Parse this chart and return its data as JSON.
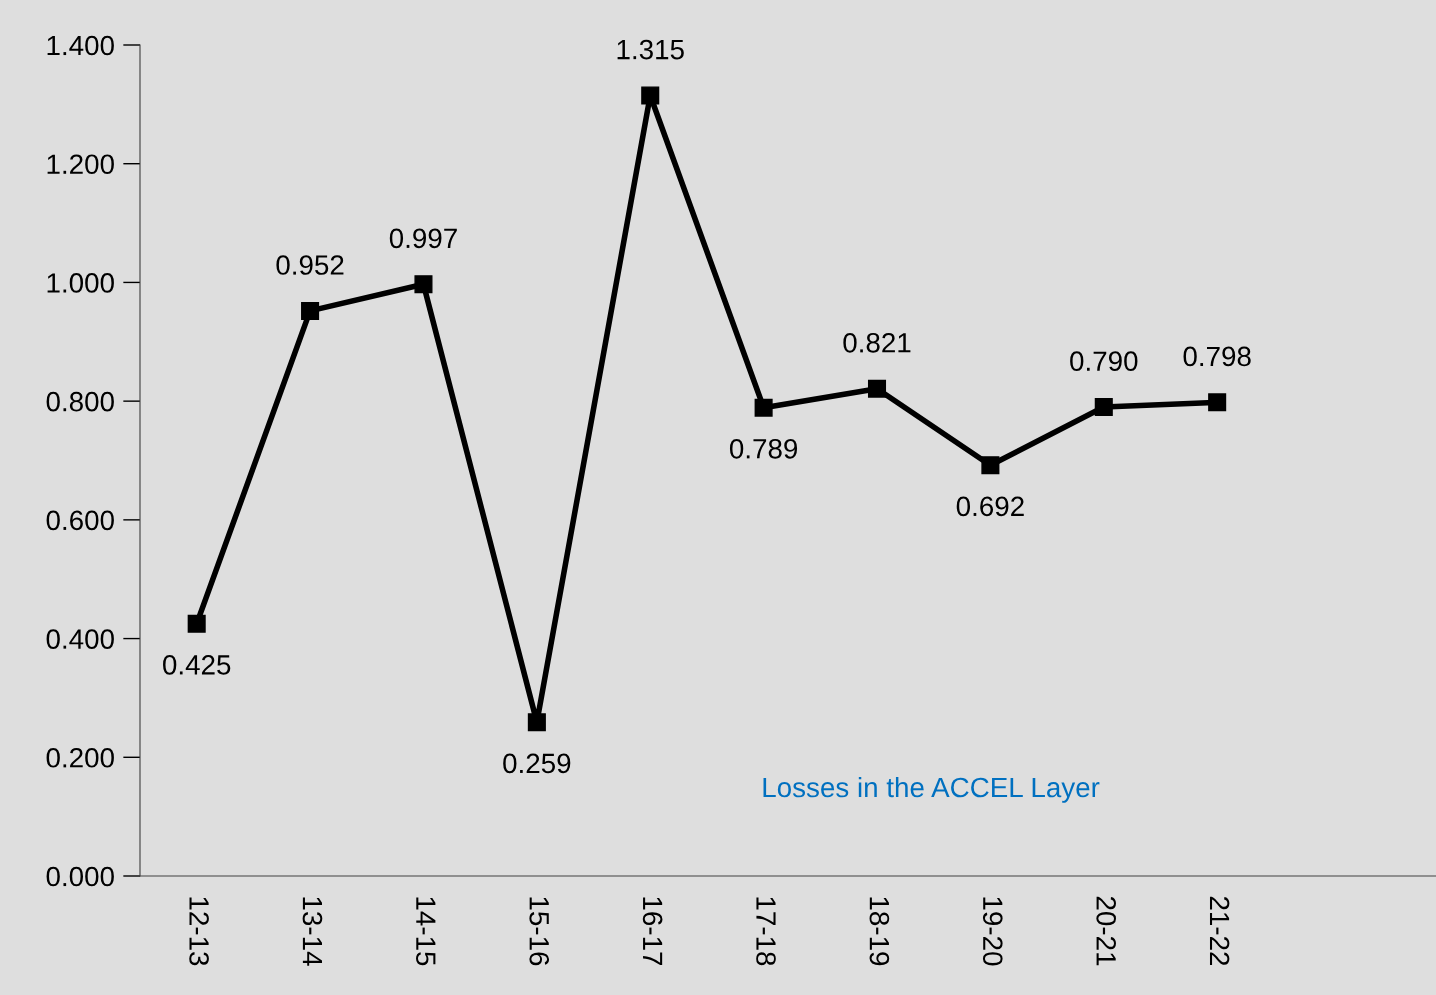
{
  "chart_data": {
    "type": "line",
    "categories": [
      "12-13",
      "13-14",
      "14-15",
      "15-16",
      "16-17",
      "17-18",
      "18-19",
      "19-20",
      "20-21",
      "21-22"
    ],
    "series": [
      {
        "color": "#000000",
        "values": [
          0.425,
          0.952,
          0.997,
          0.259,
          1.315,
          0.789,
          0.821,
          0.692,
          0.79,
          0.798
        ],
        "value_labels": [
          "0.425",
          "0.952",
          "0.997",
          "0.259",
          "1.315",
          "0.789",
          "0.821",
          "0.692",
          "0.790",
          "0.798"
        ]
      }
    ],
    "ylim": [
      0,
      1.4
    ],
    "yticks": [
      {
        "value": 0,
        "label": "0.000"
      },
      {
        "value": 0.2,
        "label": "0.200"
      },
      {
        "value": 0.4,
        "label": "0.400"
      },
      {
        "value": 0.6,
        "label": "0.600"
      },
      {
        "value": 0.8,
        "label": "0.800"
      },
      {
        "value": 1.0,
        "label": "1.000"
      },
      {
        "value": 1.2,
        "label": "1.200"
      },
      {
        "value": 1.4,
        "label": "1.400"
      }
    ],
    "annotations": [
      "Losses in the ACCEL Layer"
    ],
    "marker": "square",
    "line_style": "solid"
  }
}
